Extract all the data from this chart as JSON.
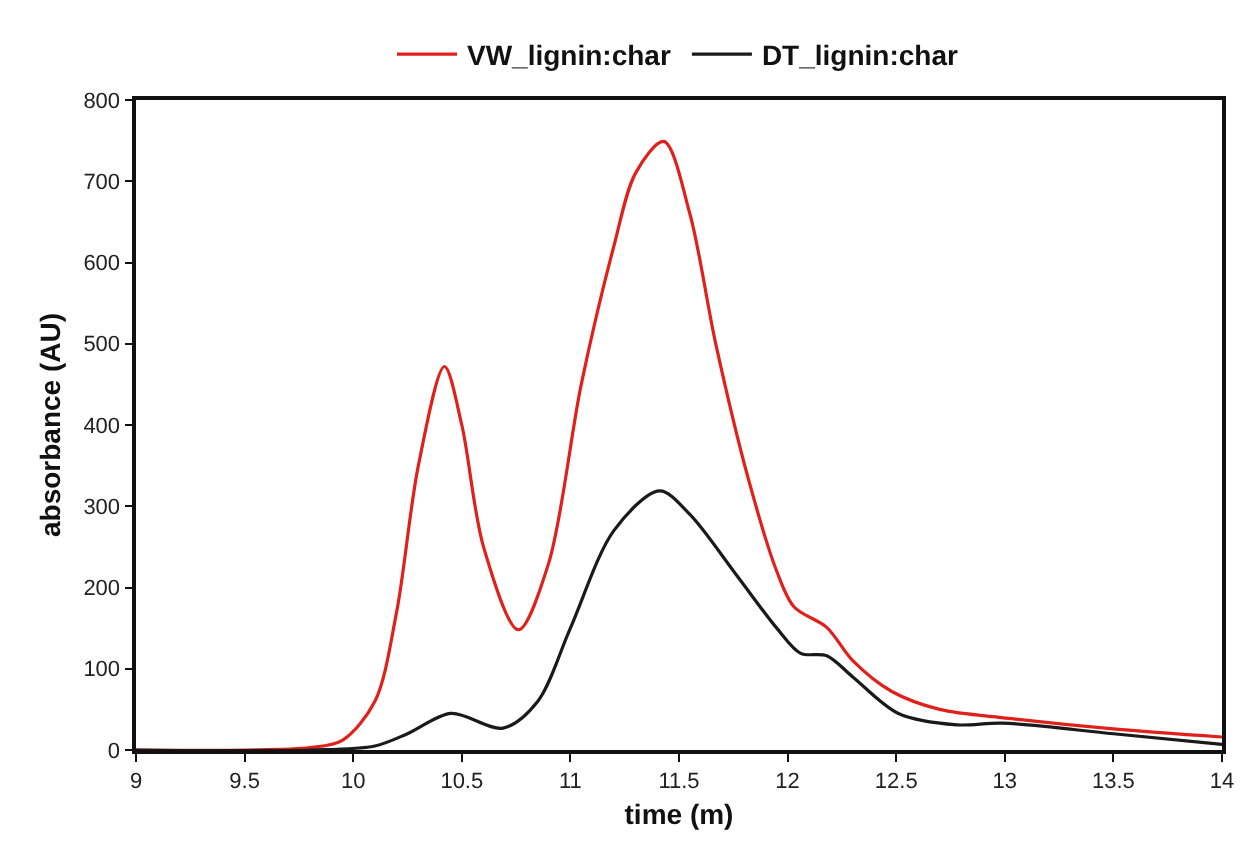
{
  "chart_data": {
    "type": "line",
    "xlabel": "time (m)",
    "ylabel": "absorbance (AU)",
    "xlim": [
      9,
      14
    ],
    "xticks": [
      9,
      9.5,
      10,
      10.5,
      11,
      11.5,
      12,
      12.5,
      13,
      13.5,
      14
    ],
    "ylim": [
      0,
      800
    ],
    "yticks": [
      0,
      100,
      200,
      300,
      400,
      500,
      600,
      700,
      800
    ],
    "grid": false,
    "legend": "top",
    "marker": "none",
    "line_style": "solid",
    "series": [
      {
        "name": "VW_lignin:char",
        "color": "#e0201b",
        "x": [
          9,
          9.5,
          9.8,
          9.95,
          10.1,
          10.2,
          10.3,
          10.42,
          10.5,
          10.6,
          10.76,
          10.9,
          11.05,
          11.2,
          11.3,
          11.43,
          11.55,
          11.67,
          11.82,
          11.95,
          12.03,
          12.18,
          12.3,
          12.48,
          12.7,
          13.02,
          13.5,
          14
        ],
        "values": [
          0,
          0,
          3,
          12,
          60,
          170,
          350,
          472,
          400,
          250,
          148,
          230,
          450,
          620,
          710,
          749,
          660,
          499,
          333,
          220,
          176,
          151,
          110,
          72,
          50,
          39,
          26,
          16
        ]
      },
      {
        "name": "DT_lignin:char",
        "color": "#1a1a1a",
        "x": [
          9,
          9.8,
          10.1,
          10.25,
          10.45,
          10.69,
          10.85,
          11.0,
          11.2,
          11.41,
          11.55,
          11.76,
          11.95,
          12.06,
          12.18,
          12.3,
          12.51,
          12.78,
          12.99,
          13.5,
          14
        ],
        "values": [
          0,
          0,
          5,
          20,
          45,
          27,
          60,
          150,
          270,
          319,
          290,
          217,
          150,
          119,
          116,
          90,
          45,
          31,
          33,
          20,
          7
        ]
      }
    ]
  }
}
